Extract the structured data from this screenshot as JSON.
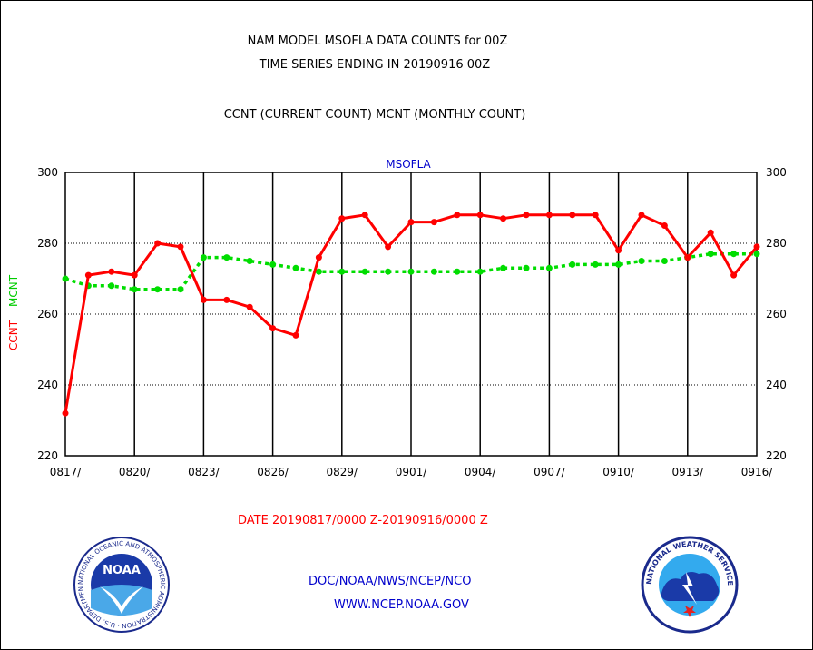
{
  "header": {
    "title_line1": "NAM MODEL MSOFLA DATA COUNTS for 00Z",
    "title_line2": "TIME SERIES ENDING IN 20190916 00Z",
    "subtitle": "CCNT (CURRENT COUNT) MCNT (MONTHLY COUNT)"
  },
  "footer": {
    "date_range": "DATE 20190817/0000 Z-20190916/0000 Z",
    "org": "DOC/NOAA/NWS/NCEP/NCO",
    "url": "WWW.NCEP.NOAA.GOV",
    "noaa_logo_text": "NOAA",
    "nws_logo_text": "NATIONAL WEATHER SERVICE",
    "noaa_ring_text": "NATIONAL OCEANIC AND ATMOSPHERIC ADMINISTRATION · U.S. DEPARTMENT OF COMMERCE"
  },
  "colors": {
    "ccnt": "#ff0000",
    "mcnt": "#00dd00",
    "station": "#0000cc"
  },
  "chart_data": {
    "type": "line",
    "title": "MSOFLA",
    "ylabel_left_ccnt": "CCNT",
    "ylabel_left_mcnt": "MCNT",
    "ylim": [
      220,
      300
    ],
    "yticks": [
      220,
      240,
      260,
      280,
      300
    ],
    "ytick_labels": [
      "220",
      "240",
      "260",
      "280",
      "300"
    ],
    "xtick_labels": [
      "0817/",
      "0820/",
      "0823/",
      "0826/",
      "0829/",
      "0901/",
      "0904/",
      "0907/",
      "0910/",
      "0913/",
      "0916/"
    ],
    "xtick_day_index": [
      0,
      3,
      6,
      9,
      12,
      15,
      18,
      21,
      24,
      27,
      30
    ],
    "x_days": 30,
    "grid": true,
    "series": [
      {
        "name": "CCNT",
        "values": [
          232,
          271,
          272,
          271,
          280,
          279,
          264,
          264,
          262,
          256,
          254,
          276,
          287,
          288,
          279,
          286,
          286,
          288,
          288,
          287,
          288,
          288,
          288,
          288,
          278,
          288,
          285,
          276,
          283,
          271,
          279
        ]
      },
      {
        "name": "MCNT",
        "values": [
          270,
          268,
          268,
          267,
          267,
          267,
          276,
          276,
          275,
          274,
          273,
          272,
          272,
          272,
          272,
          272,
          272,
          272,
          272,
          273,
          273,
          273,
          274,
          274,
          274,
          275,
          275,
          276,
          277,
          277,
          277
        ]
      }
    ]
  }
}
